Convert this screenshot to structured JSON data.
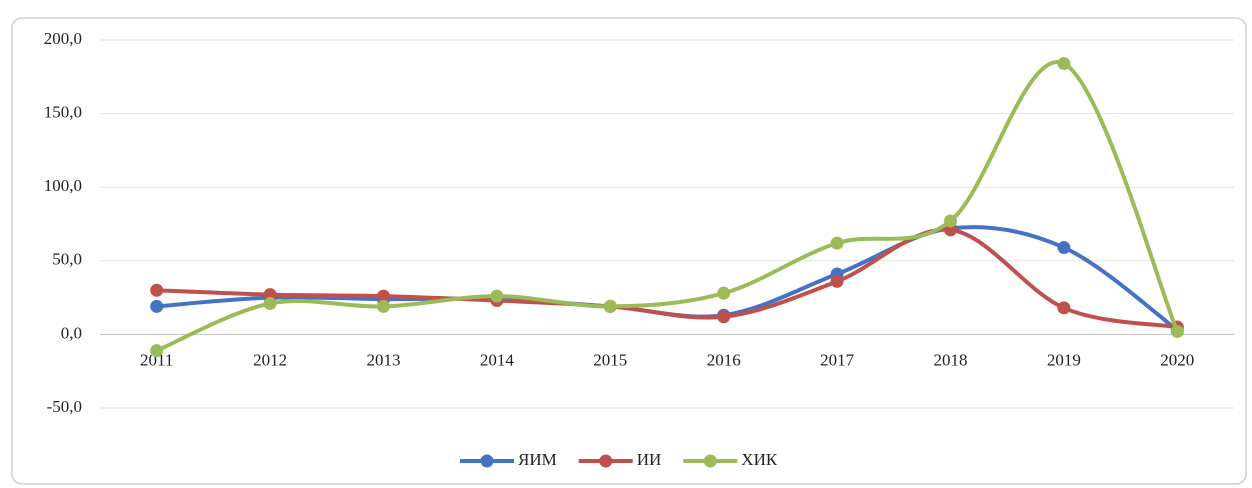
{
  "chart_data": {
    "type": "line",
    "categories": [
      "2011",
      "2012",
      "2013",
      "2014",
      "2015",
      "2016",
      "2017",
      "2018",
      "2019",
      "2020"
    ],
    "series": [
      {
        "name": "ЯИМ",
        "color": "#4472c4",
        "values": [
          19,
          25,
          24,
          24,
          19,
          13,
          41,
          72,
          59,
          3
        ]
      },
      {
        "name": "ИИ",
        "color": "#c0504d",
        "values": [
          30,
          27,
          26,
          23,
          19,
          12,
          36,
          71,
          18,
          5
        ]
      },
      {
        "name": "ХИК",
        "color": "#9bbb59",
        "values": [
          -11,
          21,
          19,
          26,
          19,
          28,
          62,
          77,
          184,
          2
        ]
      }
    ],
    "ylim": [
      -50,
      200
    ],
    "yticks": [
      {
        "value": -50,
        "label": "-50,0"
      },
      {
        "value": 0,
        "label": "0,0"
      },
      {
        "value": 50,
        "label": "50,0"
      },
      {
        "value": 100,
        "label": "100,0"
      },
      {
        "value": 150,
        "label": "150,0"
      },
      {
        "value": 200,
        "label": "200,0"
      }
    ],
    "grid": true,
    "smooth": true,
    "legend": "bottom"
  }
}
